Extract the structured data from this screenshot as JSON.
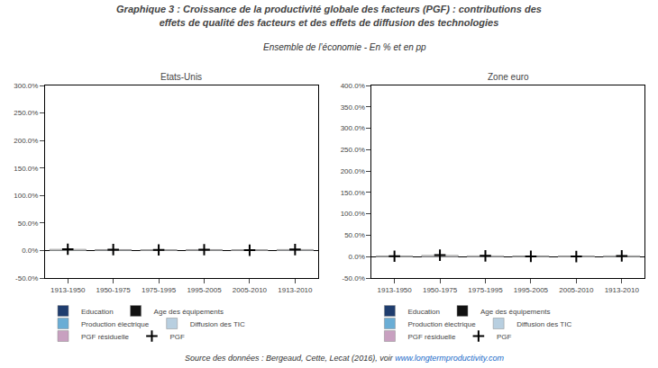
{
  "title": "Graphique 3 : Croissance de la productivité globale des facteurs (PGF) : contributions des\neffets de qualité des facteurs et des effets de diffusion des technologies",
  "subtitle": "Ensemble de l’économie - En % et en pp",
  "source": [
    "Source des données : Bergeaud, Cette, Lecat (2016), voir ",
    "www.longtermproductivity.com"
  ],
  "chart_data": [
    {
      "type": "bar",
      "stacked": true,
      "title": "Etats-Unis",
      "categories": [
        "1913-1950",
        "1950-1975",
        "1975-1995",
        "1995-2005",
        "2005-2010",
        "1913-2010"
      ],
      "series": [
        {
          "name": "Education",
          "color": "#1f3d6e",
          "values": [
            0.38,
            0.38,
            0.28,
            0.2,
            0.28,
            0.32
          ]
        },
        {
          "name": "Age des équipements",
          "color": "#111111",
          "values": [
            0.05,
            0.05,
            0.04,
            0.03,
            0.07,
            0.05
          ]
        },
        {
          "name": "Production électrique",
          "color": "#6aadd5",
          "values": [
            0.1,
            0.1,
            0.05,
            0.03,
            0.0,
            0.07
          ]
        },
        {
          "name": "Diffusion des TIC",
          "color": "#b8cfe0",
          "values": [
            0.35,
            0.28,
            0.22,
            0.27,
            0.22,
            0.28
          ]
        },
        {
          "name": "PGF résiduelle",
          "color": "#c8a0c0",
          "values": [
            0.06,
            0.24,
            0.14,
            0.7,
            -0.12,
            0.28
          ]
        },
        {
          "color": "#ffffff",
          "values": [
            1.48,
            0.6,
            0.35,
            0.4,
            0.11,
            0.79
          ]
        },
        {
          "name": "PGF",
          "type": "scatter",
          "marker": "cross",
          "color": "#000000",
          "values": [
            2.42,
            1.65,
            1.08,
            1.63,
            0.56,
            1.79
          ]
        }
      ],
      "ylim": [
        -50,
        300
      ],
      "yticks": [
        {
          "value": -50,
          "label": "-50.0%"
        },
        {
          "value": 0,
          "label": "0.0%"
        },
        {
          "value": 50,
          "label": "50.0%"
        },
        {
          "value": 100,
          "label": "100.0%"
        },
        {
          "value": 150,
          "label": "150.0%"
        },
        {
          "value": 200,
          "label": "200.0%"
        },
        {
          "value": 250,
          "label": "250.0%"
        },
        {
          "value": 300,
          "label": "300.0%"
        }
      ],
      "grid": false,
      "legend": "bottom"
    },
    {
      "type": "bar",
      "stacked": true,
      "title": "Zone euro",
      "categories": [
        "1913-1950",
        "1950-1975",
        "1975-1995",
        "1995-2005",
        "2005-2010",
        "1913-2010"
      ],
      "series": [
        {
          "name": "Education",
          "color": "#1f3d6e",
          "values": [
            0.1,
            0.42,
            0.28,
            0.14,
            0.1,
            0.24
          ]
        },
        {
          "name": "Age des équipements",
          "color": "#111111",
          "values": [
            0.02,
            0.08,
            0.04,
            0.02,
            0.02,
            0.04
          ]
        },
        {
          "name": "Production électrique",
          "color": "#6aadd5",
          "values": [
            0.05,
            0.15,
            0.05,
            0.03,
            0.0,
            0.06
          ]
        },
        {
          "name": "Diffusion des TIC",
          "color": "#b8cfe0",
          "values": [
            0.3,
            0.42,
            0.2,
            0.14,
            0.08,
            0.24
          ]
        },
        {
          "name": "PGF résiduelle",
          "color": "#c8a0c0",
          "values": [
            0.02,
            0.05,
            0.05,
            0.02,
            -0.1,
            0.03
          ]
        },
        {
          "color": "#ffffff",
          "values": [
            0.62,
            2.33,
            1.17,
            0.31,
            0.12,
            1.14
          ]
        },
        {
          "name": "PGF",
          "type": "scatter",
          "marker": "cross",
          "color": "#000000",
          "values": [
            1.11,
            3.45,
            1.79,
            0.66,
            0.22,
            1.75
          ]
        }
      ],
      "ylim": [
        -50,
        400
      ],
      "yticks": [
        {
          "value": -50,
          "label": "-50.0%"
        },
        {
          "value": 0,
          "label": "0.0%"
        },
        {
          "value": 50,
          "label": "50.0%"
        },
        {
          "value": 100,
          "label": "100.0%"
        },
        {
          "value": 150,
          "label": "150.0%"
        },
        {
          "value": 200,
          "label": "200.0%"
        },
        {
          "value": 250,
          "label": "250.0%"
        },
        {
          "value": 300,
          "label": "300.0%"
        },
        {
          "value": 350,
          "label": "350.0%"
        },
        {
          "value": 400,
          "label": "400.0%"
        }
      ],
      "grid": false,
      "legend": "bottom"
    }
  ]
}
